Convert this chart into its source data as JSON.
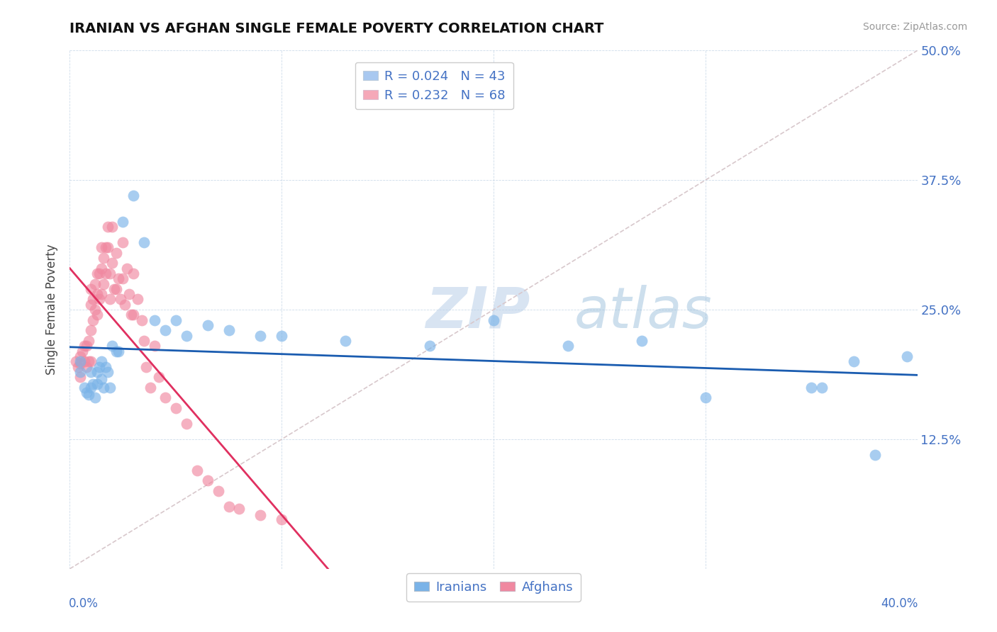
{
  "title": "IRANIAN VS AFGHAN SINGLE FEMALE POVERTY CORRELATION CHART",
  "source": "Source: ZipAtlas.com",
  "ylabel": "Single Female Poverty",
  "xlim": [
    0.0,
    0.4
  ],
  "ylim": [
    0.0,
    0.5
  ],
  "yticks": [
    0.0,
    0.125,
    0.25,
    0.375,
    0.5
  ],
  "ytick_labels": [
    "",
    "12.5%",
    "25.0%",
    "37.5%",
    "50.0%"
  ],
  "legend_entries": [
    {
      "label": "R = 0.024   N = 43",
      "color": "#a8c8f0"
    },
    {
      "label": "R = 0.232   N = 68",
      "color": "#f5a8b8"
    }
  ],
  "legend_bottom": [
    "Iranians",
    "Afghans"
  ],
  "iranian_color": "#7ab3e8",
  "afghan_color": "#f088a0",
  "trendline_iranian_color": "#1a5cb0",
  "trendline_afghan_color": "#e03060",
  "diagonal_color": "#d8c8cc",
  "watermark_zip": "ZIP",
  "watermark_atlas": "atlas",
  "iranians_x": [
    0.005,
    0.005,
    0.007,
    0.008,
    0.009,
    0.01,
    0.01,
    0.011,
    0.012,
    0.013,
    0.013,
    0.014,
    0.015,
    0.015,
    0.016,
    0.017,
    0.018,
    0.019,
    0.02,
    0.022,
    0.023,
    0.025,
    0.03,
    0.035,
    0.04,
    0.045,
    0.05,
    0.055,
    0.065,
    0.075,
    0.09,
    0.1,
    0.13,
    0.17,
    0.2,
    0.235,
    0.27,
    0.3,
    0.35,
    0.355,
    0.37,
    0.395,
    0.38
  ],
  "iranians_y": [
    0.2,
    0.19,
    0.175,
    0.17,
    0.168,
    0.19,
    0.175,
    0.178,
    0.165,
    0.19,
    0.178,
    0.195,
    0.2,
    0.183,
    0.175,
    0.195,
    0.19,
    0.175,
    0.215,
    0.21,
    0.21,
    0.335,
    0.36,
    0.315,
    0.24,
    0.23,
    0.24,
    0.225,
    0.235,
    0.23,
    0.225,
    0.225,
    0.22,
    0.215,
    0.24,
    0.215,
    0.22,
    0.165,
    0.175,
    0.175,
    0.2,
    0.205,
    0.11
  ],
  "afghans_x": [
    0.003,
    0.004,
    0.005,
    0.005,
    0.005,
    0.006,
    0.007,
    0.007,
    0.008,
    0.008,
    0.009,
    0.009,
    0.01,
    0.01,
    0.01,
    0.01,
    0.011,
    0.011,
    0.012,
    0.012,
    0.013,
    0.013,
    0.013,
    0.014,
    0.014,
    0.015,
    0.015,
    0.015,
    0.016,
    0.016,
    0.017,
    0.017,
    0.018,
    0.018,
    0.019,
    0.019,
    0.02,
    0.02,
    0.021,
    0.022,
    0.022,
    0.023,
    0.024,
    0.025,
    0.025,
    0.026,
    0.027,
    0.028,
    0.029,
    0.03,
    0.03,
    0.032,
    0.034,
    0.035,
    0.036,
    0.038,
    0.04,
    0.042,
    0.045,
    0.05,
    0.055,
    0.06,
    0.065,
    0.07,
    0.075,
    0.08,
    0.09,
    0.1
  ],
  "afghans_y": [
    0.2,
    0.195,
    0.205,
    0.198,
    0.185,
    0.21,
    0.215,
    0.2,
    0.215,
    0.195,
    0.22,
    0.2,
    0.27,
    0.255,
    0.23,
    0.2,
    0.26,
    0.24,
    0.275,
    0.25,
    0.285,
    0.265,
    0.245,
    0.285,
    0.26,
    0.31,
    0.29,
    0.265,
    0.3,
    0.275,
    0.31,
    0.285,
    0.33,
    0.31,
    0.285,
    0.26,
    0.33,
    0.295,
    0.27,
    0.305,
    0.27,
    0.28,
    0.26,
    0.315,
    0.28,
    0.255,
    0.29,
    0.265,
    0.245,
    0.285,
    0.245,
    0.26,
    0.24,
    0.22,
    0.195,
    0.175,
    0.215,
    0.185,
    0.165,
    0.155,
    0.14,
    0.095,
    0.085,
    0.075,
    0.06,
    0.058,
    0.052,
    0.048
  ]
}
